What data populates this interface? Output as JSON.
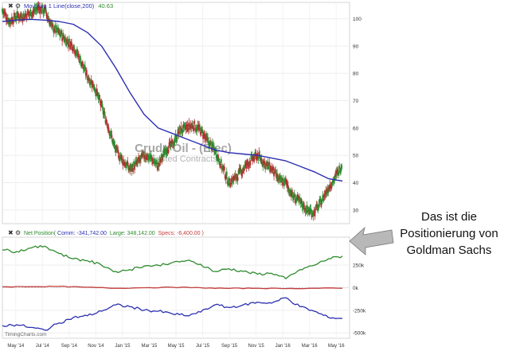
{
  "chart_data": [
    {
      "type": "line",
      "title": "Crude Oil - (Elec)",
      "subtitle": "Limited Contracts",
      "legend_text": "Mov Avg 1 Line(close,200) 40.63",
      "legend_prefix": "Mov Avg 1 Line(close,200)",
      "legend_value": "40.63",
      "yticks": [
        "100",
        "90",
        "80",
        "70",
        "60",
        "50",
        "40",
        "30"
      ],
      "ylim": [
        25,
        106
      ],
      "xlim": [
        0,
        24.5
      ],
      "xticks": [
        "May '14",
        "Jul '14",
        "Sep '14",
        "Nov '14",
        "Jan '15",
        "Mar '15",
        "May '15",
        "Jul '15",
        "Sep '15",
        "Nov '15",
        "Jan '16",
        "Mar '16",
        "May '16"
      ],
      "grid": true,
      "series": [
        {
          "role": "price",
          "color": "#2f7d2f",
          "x": [
            0,
            0.5,
            1,
            1.5,
            2,
            2.5,
            3,
            3.5,
            4,
            4.5,
            5,
            5.5,
            6,
            6.5,
            7,
            7.5,
            8,
            8.5,
            9,
            9.5,
            10,
            10.5,
            11,
            11.5,
            12,
            12.5,
            13,
            13.5,
            14,
            14.5,
            15,
            15.5,
            16,
            16.5,
            17,
            17.5,
            18,
            18.5,
            19,
            19.5,
            20,
            20.5,
            21,
            21.5,
            22,
            22.5,
            23,
            23.5,
            24
          ],
          "values": [
            103,
            99,
            101,
            101,
            102,
            104,
            103,
            97,
            95,
            92,
            90,
            85,
            79,
            75,
            68,
            60,
            52,
            48,
            45,
            47,
            50,
            49,
            46,
            52,
            54,
            59,
            60,
            61,
            59,
            55,
            52,
            46,
            40,
            42,
            45,
            48,
            50,
            47,
            45,
            41,
            40,
            35,
            33,
            30,
            29,
            33,
            38,
            42,
            47
          ]
        },
        {
          "role": "mov-avg",
          "name": "Mov Avg 1 Line(close,200)",
          "color": "#2b2fb0",
          "x": [
            0,
            1,
            2,
            3,
            4,
            5,
            6,
            7,
            8,
            9,
            10,
            11,
            12,
            13,
            14,
            15,
            16,
            17,
            18,
            19,
            20,
            21,
            22,
            23,
            24
          ],
          "values": [
            99,
            99.5,
            99.8,
            99.5,
            99,
            98,
            95,
            90,
            82,
            73,
            65,
            60,
            58,
            56,
            54,
            52,
            51,
            50.5,
            50,
            49,
            48,
            46,
            44,
            41.5,
            40.6
          ]
        }
      ]
    },
    {
      "type": "line",
      "legend_text": "Net Position(Comm: -341,742.00, Large: 348,142.00, Specs: -6,400.00)",
      "legend_prefix": "Net Position(",
      "legend_comm": "Comm: -341,742.00",
      "legend_large": "Large: 348,142.00",
      "legend_specs": "Specs: -6,400.00",
      "legend_close": ")",
      "yticks": [
        "250k",
        "0k",
        "-250k",
        "-500k"
      ],
      "ylim": [
        -560000,
        560000
      ],
      "xlim": [
        0,
        24.5
      ],
      "grid": true,
      "series": [
        {
          "name": "Large",
          "color": "#2e8b2e",
          "x": [
            0,
            1,
            2,
            3,
            4,
            5,
            6,
            7,
            8,
            9,
            10,
            11,
            12,
            13,
            14,
            15,
            16,
            17,
            18,
            19,
            20,
            21,
            22,
            23,
            24
          ],
          "values": [
            420000,
            400000,
            440000,
            460000,
            380000,
            320000,
            300000,
            250000,
            180000,
            200000,
            240000,
            250000,
            280000,
            300000,
            260000,
            180000,
            210000,
            180000,
            150000,
            160000,
            100000,
            200000,
            250000,
            320000,
            350000
          ]
        },
        {
          "name": "Specs",
          "color": "#c43c3c",
          "x": [
            0,
            2,
            4,
            6,
            8,
            10,
            12,
            14,
            16,
            18,
            20,
            22,
            24
          ],
          "values": [
            10000,
            12000,
            15000,
            5000,
            -5000,
            0,
            5000,
            0,
            -8000,
            -5000,
            -10000,
            -5000,
            -6400
          ]
        },
        {
          "name": "Comm",
          "color": "#2b2fb0",
          "x": [
            0,
            1,
            2,
            3,
            4,
            5,
            6,
            7,
            8,
            9,
            10,
            11,
            12,
            13,
            14,
            15,
            16,
            17,
            18,
            19,
            20,
            21,
            22,
            23,
            24
          ],
          "values": [
            -420000,
            -410000,
            -440000,
            -470000,
            -390000,
            -330000,
            -310000,
            -260000,
            -190000,
            -210000,
            -250000,
            -260000,
            -290000,
            -310000,
            -270000,
            -190000,
            -220000,
            -190000,
            -160000,
            -170000,
            -110000,
            -210000,
            -260000,
            -330000,
            -340000
          ]
        }
      ]
    }
  ],
  "watermark": "TimingCharts.com",
  "annotation": {
    "line1": "Das ist die",
    "line2": "Positionierung von",
    "line3": "Goldman Sachs"
  }
}
